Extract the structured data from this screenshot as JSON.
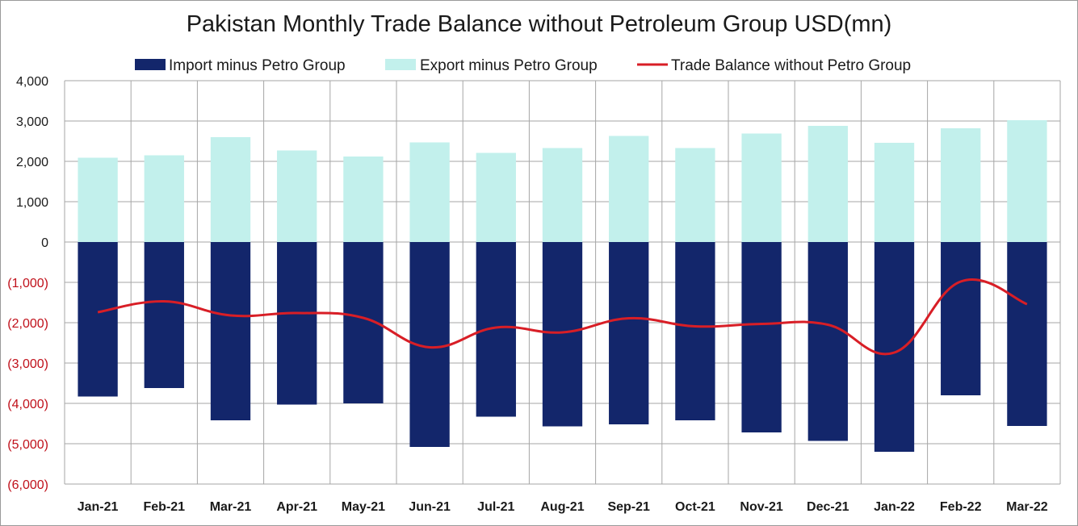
{
  "chart_data": {
    "type": "bar",
    "title": "Pakistan Monthly Trade Balance without Petroleum Group USD(mn)",
    "xlabel": "",
    "ylabel": "",
    "categories": [
      "Jan-21",
      "Feb-21",
      "Mar-21",
      "Apr-21",
      "May-21",
      "Jun-21",
      "Jul-21",
      "Aug-21",
      "Sep-21",
      "Oct-21",
      "Nov-21",
      "Dec-21",
      "Jan-22",
      "Feb-22",
      "Mar-22"
    ],
    "ylim": [
      -6000,
      4000
    ],
    "yticks": [
      4000,
      3000,
      2000,
      1000,
      0,
      -1000,
      -2000,
      -3000,
      -4000,
      -5000,
      -6000
    ],
    "ytick_labels": [
      "4,000",
      "3,000",
      "2,000",
      "1,000",
      "0",
      "(1,000)",
      "(2,000)",
      "(3,000)",
      "(4,000)",
      "(5,000)",
      "(6,000)"
    ],
    "grid": true,
    "legend_position": "top",
    "series": [
      {
        "name": "Import minus Petro Group",
        "kind": "bar",
        "color": "#13266b",
        "values": [
          -3830,
          -3620,
          -4420,
          -4030,
          -4000,
          -5080,
          -4330,
          -4570,
          -4520,
          -4420,
          -4720,
          -4930,
          -5200,
          -3800,
          -4560
        ]
      },
      {
        "name": "Export minus Petro Group",
        "kind": "bar",
        "color": "#c2f0ec",
        "values": [
          2090,
          2150,
          2600,
          2270,
          2120,
          2470,
          2210,
          2330,
          2630,
          2330,
          2690,
          2880,
          2460,
          2820,
          3020
        ]
      },
      {
        "name": "Trade Balance without Petro Group",
        "kind": "line",
        "color": "#d81e26",
        "values": [
          -1740,
          -1470,
          -1820,
          -1760,
          -1880,
          -2610,
          -2120,
          -2240,
          -1890,
          -2090,
          -2030,
          -2050,
          -2740,
          -980,
          -1540
        ]
      }
    ]
  }
}
